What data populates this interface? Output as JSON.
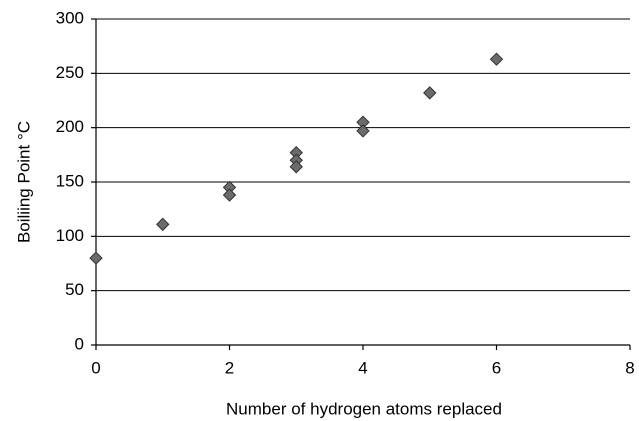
{
  "chart_data": {
    "type": "scatter",
    "x_label": "Number of hydrogen atoms replaced",
    "y_label": "Boiliing Point °C",
    "series": [
      {
        "color": "#6b6b6b",
        "x": [
          0,
          1,
          2,
          2,
          3,
          3,
          3,
          4,
          4,
          5,
          6
        ],
        "values": [
          80,
          111,
          145,
          138,
          177,
          170,
          164,
          205,
          197,
          232,
          263
        ]
      }
    ],
    "xlim": [
      0,
      8
    ],
    "xticks": [
      0,
      2,
      4,
      6,
      8
    ],
    "ylim": [
      0,
      300
    ],
    "yticks": [
      0,
      50,
      100,
      150,
      200,
      250,
      300
    ],
    "grid": true
  }
}
